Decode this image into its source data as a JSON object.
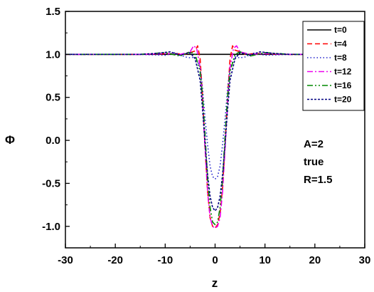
{
  "chart_data": {
    "type": "line",
    "xlabel": "z",
    "ylabel": "Φ",
    "xlim": [
      -30,
      30
    ],
    "ylim": [
      -1.25,
      1.5
    ],
    "xticks": [
      -30,
      -20,
      -10,
      0,
      10,
      20,
      30
    ],
    "yticks": [
      -1.0,
      -0.5,
      0.0,
      0.5,
      1.0,
      1.5
    ],
    "ytick_labels": [
      "-1.0",
      "-0.5",
      "0.0",
      "0.5",
      "1.0",
      "1.5"
    ],
    "grid": false,
    "legend_position": "top-right",
    "annotations": [
      "A=2",
      "true",
      "R=1.5"
    ],
    "series": [
      {
        "name": "t=0",
        "color": "#000000",
        "dash": "solid",
        "x": [
          -30,
          -20,
          -10,
          -5,
          -2,
          0,
          2,
          5,
          10,
          20,
          30
        ],
        "y": [
          1,
          1,
          1,
          1,
          1,
          1,
          1,
          1,
          1,
          1,
          1
        ]
      },
      {
        "name": "t=4",
        "color": "#ff0000",
        "dash": "dash",
        "x": [
          -30,
          -15,
          -8,
          -6,
          -5,
          -4,
          -3.5,
          -3,
          -2.5,
          -2,
          -1.5,
          -1,
          -0.5,
          0,
          0.5,
          1,
          1.5,
          2,
          2.5,
          3,
          3.5,
          4,
          5,
          6,
          8,
          15,
          30
        ],
        "y": [
          1,
          1,
          1.01,
          1.0,
          1.02,
          1.04,
          1.1,
          0.95,
          0.5,
          -0.1,
          -0.6,
          -0.9,
          -1.0,
          -1.02,
          -0.98,
          -0.85,
          -0.55,
          -0.05,
          0.5,
          0.95,
          1.1,
          1.05,
          1.03,
          1.0,
          1.01,
          1,
          1
        ]
      },
      {
        "name": "t=8",
        "color": "#2222cc",
        "dash": "dot",
        "x": [
          -30,
          -15,
          -10,
          -8,
          -6,
          -5,
          -4,
          -3,
          -2.5,
          -2,
          -1.5,
          -1,
          -0.5,
          0,
          0.5,
          1,
          1.5,
          2,
          2.5,
          3,
          4,
          5,
          6,
          8,
          10,
          15,
          30
        ],
        "y": [
          1,
          1,
          0.99,
          1.02,
          0.97,
          0.96,
          0.97,
          0.85,
          0.6,
          0.25,
          -0.05,
          -0.3,
          -0.42,
          -0.45,
          -0.42,
          -0.3,
          -0.05,
          0.25,
          0.6,
          0.85,
          0.97,
          0.96,
          0.97,
          1.02,
          0.99,
          1,
          1
        ]
      },
      {
        "name": "t=12",
        "color": "#ee00ee",
        "dash": "dashdot",
        "x": [
          -30,
          -15,
          -10,
          -7,
          -5,
          -4.3,
          -3.7,
          -3,
          -2.5,
          -2,
          -1.5,
          -1,
          -0.5,
          0,
          0.5,
          1,
          1.5,
          2,
          2.5,
          3,
          3.7,
          4.3,
          5,
          7,
          10,
          15,
          30
        ],
        "y": [
          1,
          1,
          1.01,
          1.0,
          1.03,
          1.1,
          1.07,
          0.85,
          0.45,
          -0.1,
          -0.6,
          -0.9,
          -1.0,
          -1.02,
          -1.0,
          -0.9,
          -0.6,
          -0.1,
          0.45,
          0.85,
          1.07,
          1.1,
          1.03,
          1.0,
          1.01,
          1,
          1
        ]
      },
      {
        "name": "t=16",
        "color": "#008800",
        "dash": "dashdotdot",
        "x": [
          -30,
          -15,
          -10,
          -7,
          -5,
          -4,
          -3,
          -2.5,
          -2,
          -1.5,
          -1,
          -0.5,
          0,
          0.5,
          1,
          1.5,
          2,
          2.5,
          3,
          4,
          5,
          7,
          10,
          15,
          30
        ],
        "y": [
          1,
          1,
          1.02,
          0.98,
          1.03,
          1.0,
          0.8,
          0.5,
          0.05,
          -0.45,
          -0.78,
          -0.95,
          -0.98,
          -0.95,
          -0.78,
          -0.45,
          0.05,
          0.5,
          0.8,
          1.0,
          1.03,
          0.98,
          1.02,
          1,
          1
        ]
      },
      {
        "name": "t=20",
        "color": "#000080",
        "dash": "shortdash",
        "x": [
          -30,
          -15,
          -12,
          -9,
          -7,
          -5,
          -4,
          -3,
          -2.5,
          -2,
          -1.5,
          -1,
          -0.5,
          0,
          0.5,
          1,
          1.5,
          2,
          2.5,
          3,
          4,
          5,
          7,
          9,
          12,
          15,
          30
        ],
        "y": [
          1,
          1,
          1.01,
          1.03,
          0.99,
          1.02,
          0.95,
          0.7,
          0.35,
          -0.05,
          -0.4,
          -0.65,
          -0.78,
          -0.82,
          -0.78,
          -0.65,
          -0.4,
          -0.05,
          0.35,
          0.7,
          0.95,
          1.02,
          0.99,
          1.03,
          1.01,
          1,
          1
        ]
      }
    ]
  }
}
